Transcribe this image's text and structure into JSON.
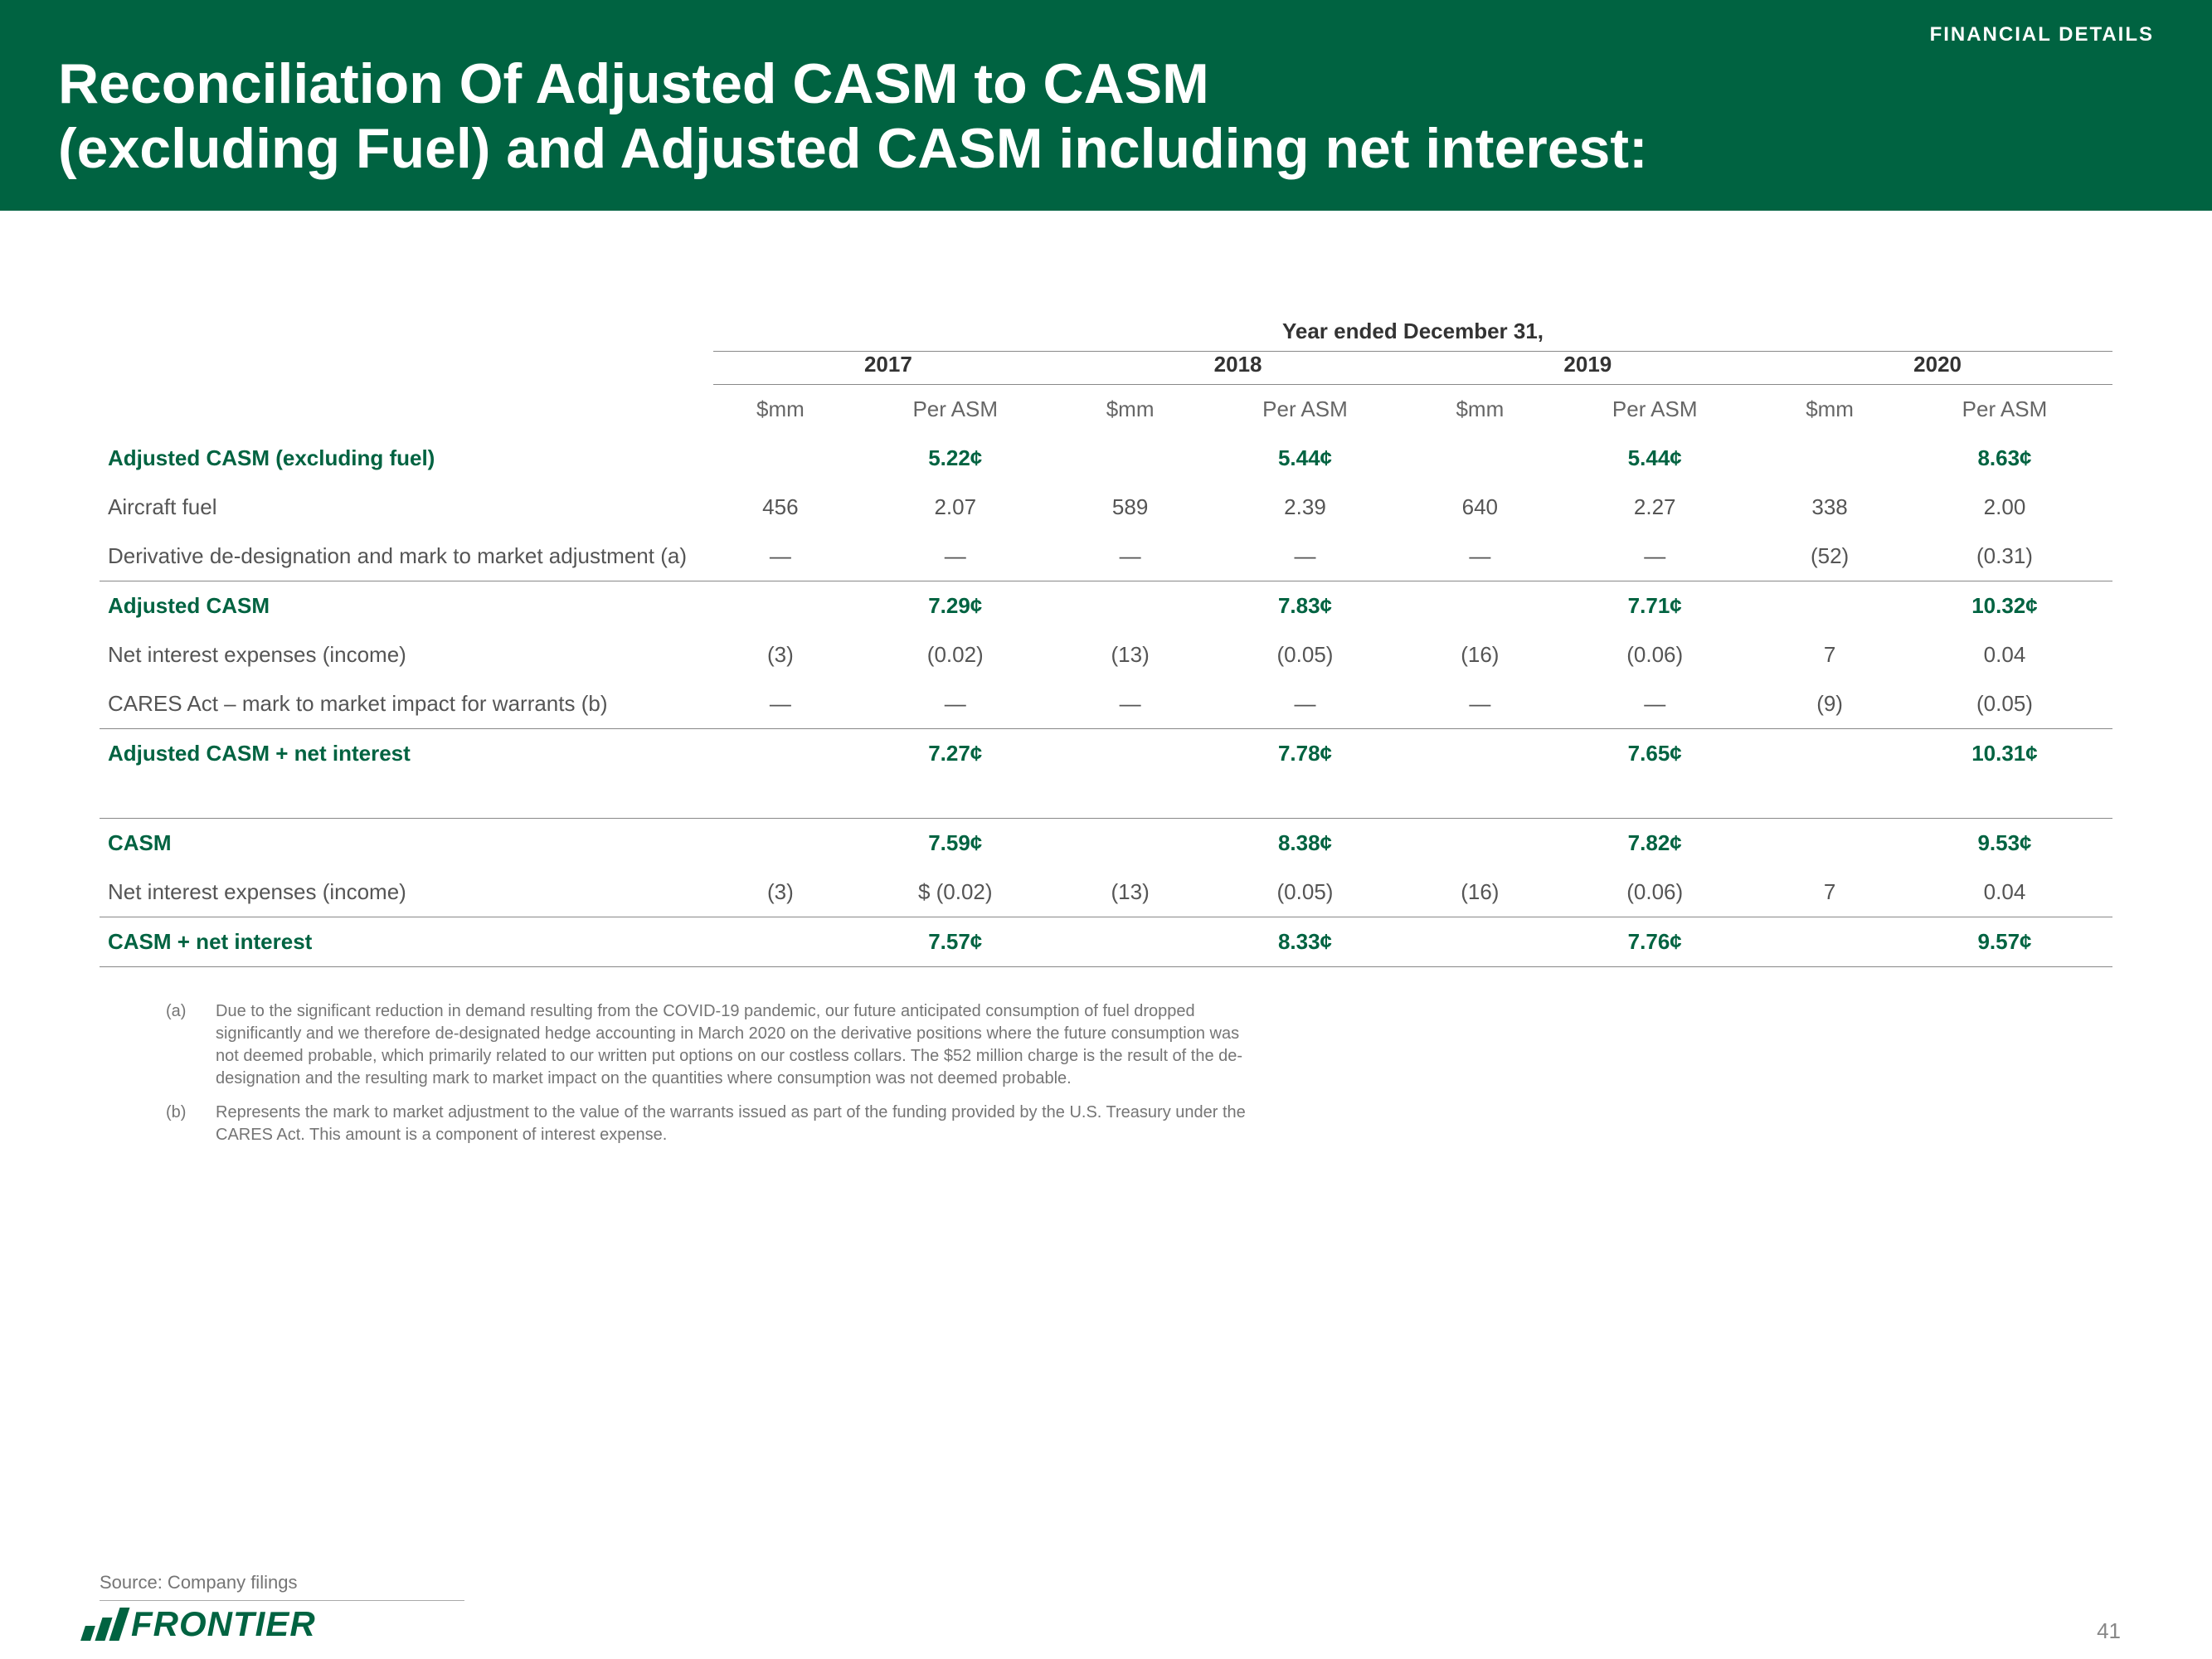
{
  "colors": {
    "header_bg": "#006341",
    "header_text": "#ffffff",
    "accent": "#006341",
    "body_text": "#555555",
    "muted_text": "#757575",
    "border": "#888888"
  },
  "header": {
    "section_label": "FINANCIAL DETAILS",
    "title_line1": "Reconciliation Of Adjusted CASM to CASM",
    "title_line2": "(excluding Fuel) and Adjusted CASM including net interest:"
  },
  "table": {
    "super_header": "Year ended December 31,",
    "years": [
      "2017",
      "2018",
      "2019",
      "2020"
    ],
    "sub_cols": [
      "$mm",
      "Per ASM"
    ],
    "rows": [
      {
        "label": "Adjusted CASM (excluding fuel)",
        "style": "section",
        "cells": [
          "",
          "5.22¢",
          "",
          "5.44¢",
          "",
          "5.44¢",
          "",
          "8.63¢"
        ]
      },
      {
        "label": "Aircraft fuel",
        "style": "normal",
        "cells": [
          "456",
          "2.07",
          "589",
          "2.39",
          "640",
          "2.27",
          "338",
          "2.00"
        ]
      },
      {
        "label": "Derivative de-designation and mark to market adjustment (a)",
        "style": "normal border-bottom",
        "cells": [
          "—",
          "—",
          "—",
          "—",
          "—",
          "—",
          "(52)",
          "(0.31)"
        ]
      },
      {
        "label": "Adjusted CASM",
        "style": "section",
        "cells": [
          "",
          "7.29¢",
          "",
          "7.83¢",
          "",
          "7.71¢",
          "",
          "10.32¢"
        ]
      },
      {
        "label": "Net interest expenses (income)",
        "style": "normal",
        "cells": [
          "(3)",
          "(0.02)",
          "(13)",
          "(0.05)",
          "(16)",
          "(0.06)",
          "7",
          "0.04"
        ]
      },
      {
        "label": "CARES Act – mark to market impact for warrants (b)",
        "style": "normal border-bottom",
        "cells": [
          "—",
          "—",
          "—",
          "—",
          "—",
          "—",
          "(9)",
          "(0.05)"
        ]
      },
      {
        "label": "Adjusted CASM + net interest",
        "style": "section",
        "cells": [
          "",
          "7.27¢",
          "",
          "7.78¢",
          "",
          "7.65¢",
          "",
          "10.31¢"
        ]
      },
      {
        "label": "",
        "style": "spacer",
        "cells": [
          "",
          "",
          "",
          "",
          "",
          "",
          "",
          ""
        ]
      },
      {
        "label": "CASM",
        "style": "section border-top",
        "cells": [
          "",
          "7.59¢",
          "",
          "8.38¢",
          "",
          "7.82¢",
          "",
          "9.53¢"
        ]
      },
      {
        "label": "Net interest expenses (income)",
        "style": "normal border-bottom",
        "cells": [
          "(3)",
          "$ (0.02)",
          "(13)",
          "(0.05)",
          "(16)",
          "(0.06)",
          "7",
          "0.04"
        ]
      },
      {
        "label": "CASM + net interest",
        "style": "section border-bottom",
        "cells": [
          "",
          "7.57¢",
          "",
          "8.33¢",
          "",
          "7.76¢",
          "",
          "9.57¢"
        ]
      }
    ]
  },
  "footnotes": [
    {
      "label": "(a)",
      "text": "Due to the significant reduction in demand resulting from the COVID-19 pandemic, our future anticipated consumption of fuel dropped significantly and we therefore de-designated hedge accounting in March 2020 on the derivative positions where the future consumption was not deemed probable, which primarily related to our written put options on our costless collars. The $52 million charge is the result of the de-designation and the resulting mark to market impact on the quantities where consumption was not deemed probable."
    },
    {
      "label": "(b)",
      "text": "Represents the mark to market adjustment to the value of the warrants issued as part of the funding provided by the U.S. Treasury under the CARES Act. This amount is a component of interest expense."
    }
  ],
  "source": "Source: Company filings",
  "logo_text": "FRONTIER",
  "page_number": "41"
}
